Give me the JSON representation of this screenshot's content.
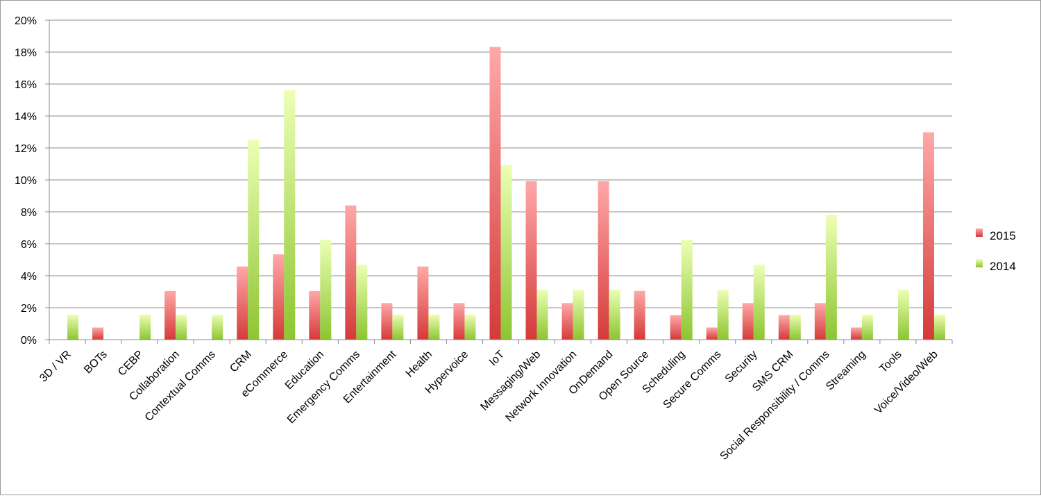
{
  "chart_data": {
    "type": "bar",
    "title": "",
    "xlabel": "",
    "ylabel": "",
    "ylim": [
      0,
      20
    ],
    "y_ticks": [
      "0%",
      "2%",
      "4%",
      "6%",
      "8%",
      "10%",
      "12%",
      "14%",
      "16%",
      "18%",
      "20%"
    ],
    "grid": true,
    "legend_position": "right",
    "categories": [
      "3D / VR",
      "BOTs",
      "CEBP",
      "Collaboration",
      "Contextual Comms",
      "CRM",
      "eCommerce",
      "Education",
      "Emergency Comms",
      "Entertainment",
      "Health",
      "Hypervoice",
      "IoT",
      "Messaging/Web",
      "Network Innovation",
      "OnDemand",
      "Open Source",
      "Scheduling",
      "Secure Comms",
      "Security",
      "SMS CRM",
      "Social Responsibility / Comms",
      "Streaming",
      "Tools",
      "Voice/Video/Web"
    ],
    "series": [
      {
        "name": "2015",
        "color": "#e8403f",
        "values": [
          0,
          0.76,
          0,
          3.05,
          0,
          4.58,
          5.34,
          3.05,
          8.4,
          2.29,
          4.58,
          2.29,
          18.32,
          9.92,
          2.29,
          9.92,
          3.05,
          1.53,
          0.76,
          2.29,
          1.53,
          2.29,
          0.76,
          0,
          12.98
        ]
      },
      {
        "name": "2014",
        "color": "#8fc934",
        "values": [
          1.56,
          0,
          1.56,
          1.56,
          1.56,
          12.5,
          15.63,
          6.25,
          4.69,
          1.56,
          1.56,
          1.56,
          10.94,
          3.13,
          3.13,
          3.13,
          0,
          6.25,
          3.13,
          4.69,
          1.56,
          7.81,
          1.56,
          3.13,
          1.56
        ]
      }
    ]
  }
}
